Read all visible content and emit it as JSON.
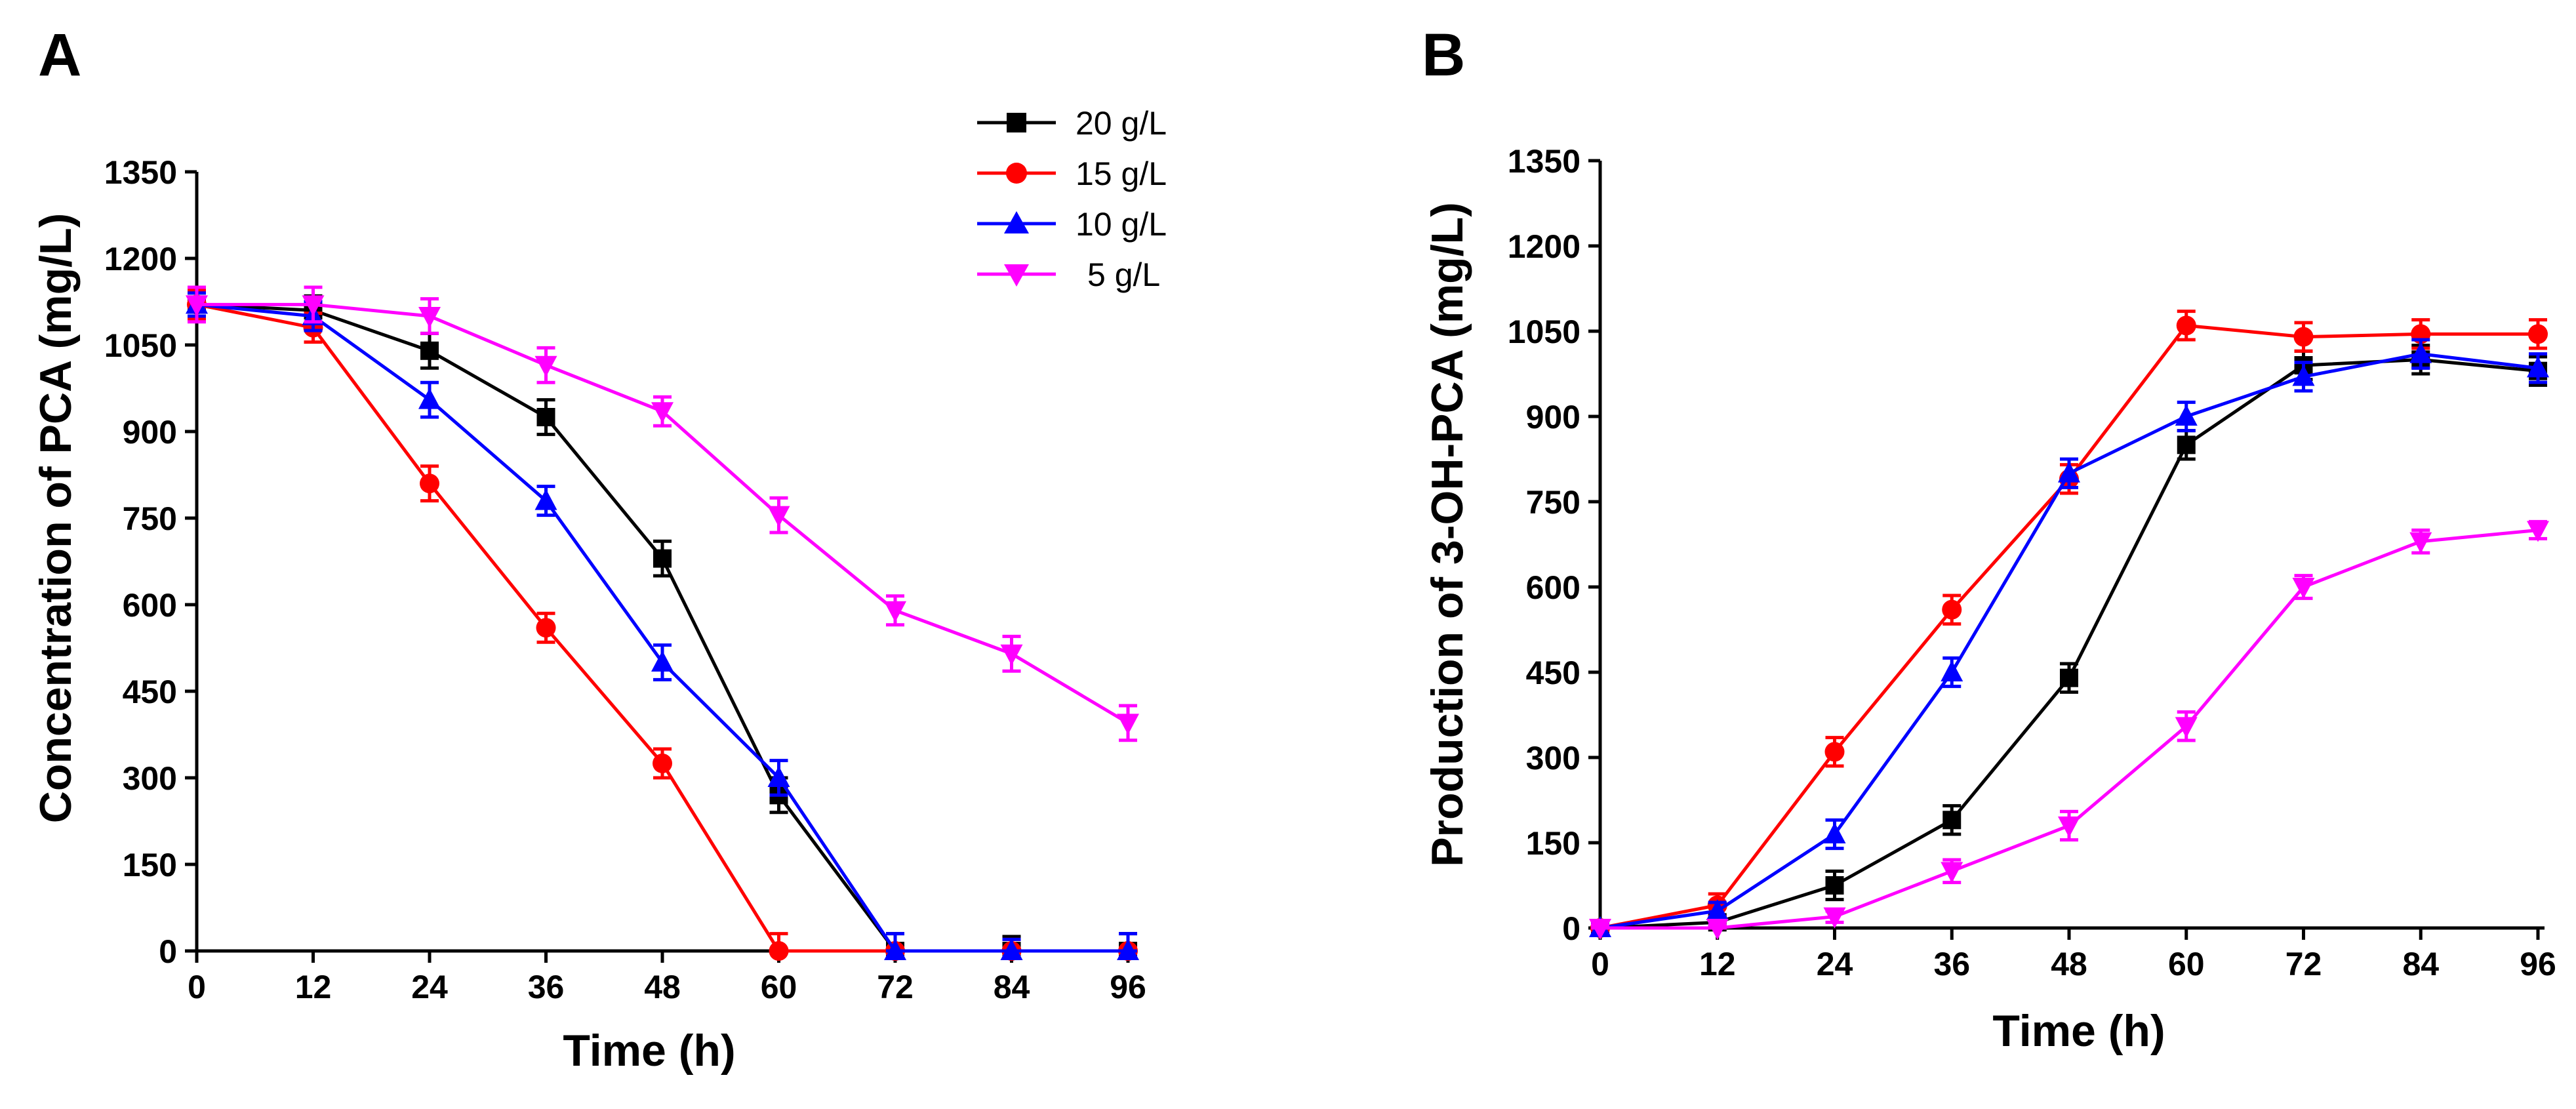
{
  "legend": [
    {
      "label": "20 g/L",
      "color": "#000000",
      "marker": "square"
    },
    {
      "label": "15 g/L",
      "color": "#ff0000",
      "marker": "circle"
    },
    {
      "label": "10 g/L",
      "color": "#0000ff",
      "marker": "triangle-up"
    },
    {
      "label": "5 g/L",
      "color": "#ff00ff",
      "marker": "triangle-down"
    }
  ],
  "chart_data": [
    {
      "panel": "A",
      "type": "line",
      "title": "",
      "xlabel": "Time (h)",
      "ylabel": "Concentration of PCA (mg/L)",
      "xlim": [
        0,
        96
      ],
      "ylim": [
        0,
        1350
      ],
      "xticks": [
        "0",
        "12",
        "24",
        "36",
        "48",
        "60",
        "72",
        "84",
        "96"
      ],
      "yticks": [
        "0",
        "150",
        "300",
        "450",
        "600",
        "750",
        "900",
        "1050",
        "1200",
        "1350"
      ],
      "x": [
        0,
        12,
        24,
        36,
        48,
        60,
        72,
        84,
        96
      ],
      "series": [
        {
          "name": "20 g/L",
          "values": [
            1120,
            1110,
            1040,
            925,
            680,
            270,
            0,
            0,
            0
          ],
          "errors": [
            20,
            25,
            30,
            30,
            30,
            30,
            30,
            25,
            30
          ]
        },
        {
          "name": "15 g/L",
          "values": [
            1120,
            1080,
            810,
            560,
            325,
            0,
            0,
            0,
            0
          ],
          "errors": [
            25,
            25,
            30,
            25,
            25,
            30,
            5,
            20,
            5
          ]
        },
        {
          "name": "10 g/L",
          "values": [
            1120,
            1100,
            955,
            780,
            500,
            300,
            0,
            0,
            0
          ],
          "errors": [
            20,
            25,
            30,
            25,
            30,
            30,
            30,
            20,
            30
          ]
        },
        {
          "name": "5 g/L",
          "values": [
            1120,
            1120,
            1100,
            1015,
            935,
            755,
            590,
            515,
            395
          ],
          "errors": [
            30,
            30,
            30,
            30,
            25,
            30,
            25,
            30,
            30
          ]
        }
      ]
    },
    {
      "panel": "B",
      "type": "line",
      "title": "",
      "xlabel": "Time (h)",
      "ylabel": "Production of 3-OH-PCA (mg/L)",
      "xlim": [
        0,
        96
      ],
      "ylim": [
        0,
        1350
      ],
      "xticks": [
        "0",
        "12",
        "24",
        "36",
        "48",
        "60",
        "72",
        "84",
        "96"
      ],
      "yticks": [
        "0",
        "150",
        "300",
        "450",
        "600",
        "750",
        "900",
        "1050",
        "1200",
        "1350"
      ],
      "x": [
        0,
        12,
        24,
        36,
        48,
        60,
        72,
        84,
        96
      ],
      "series": [
        {
          "name": "20 g/L",
          "values": [
            0,
            10,
            75,
            190,
            440,
            850,
            990,
            1000,
            980
          ],
          "errors": [
            10,
            10,
            25,
            25,
            25,
            25,
            25,
            25,
            25
          ]
        },
        {
          "name": "15 g/L",
          "values": [
            0,
            40,
            310,
            560,
            790,
            1060,
            1040,
            1045,
            1045
          ],
          "errors": [
            10,
            20,
            25,
            25,
            25,
            25,
            25,
            25,
            25
          ]
        },
        {
          "name": "10 g/L",
          "values": [
            0,
            30,
            165,
            450,
            800,
            900,
            970,
            1010,
            985
          ],
          "errors": [
            10,
            15,
            25,
            25,
            25,
            25,
            25,
            25,
            25
          ]
        },
        {
          "name": "5 g/L",
          "values": [
            0,
            0,
            20,
            100,
            180,
            355,
            600,
            680,
            700
          ],
          "errors": [
            5,
            5,
            10,
            20,
            25,
            25,
            20,
            20,
            15
          ]
        }
      ]
    }
  ]
}
